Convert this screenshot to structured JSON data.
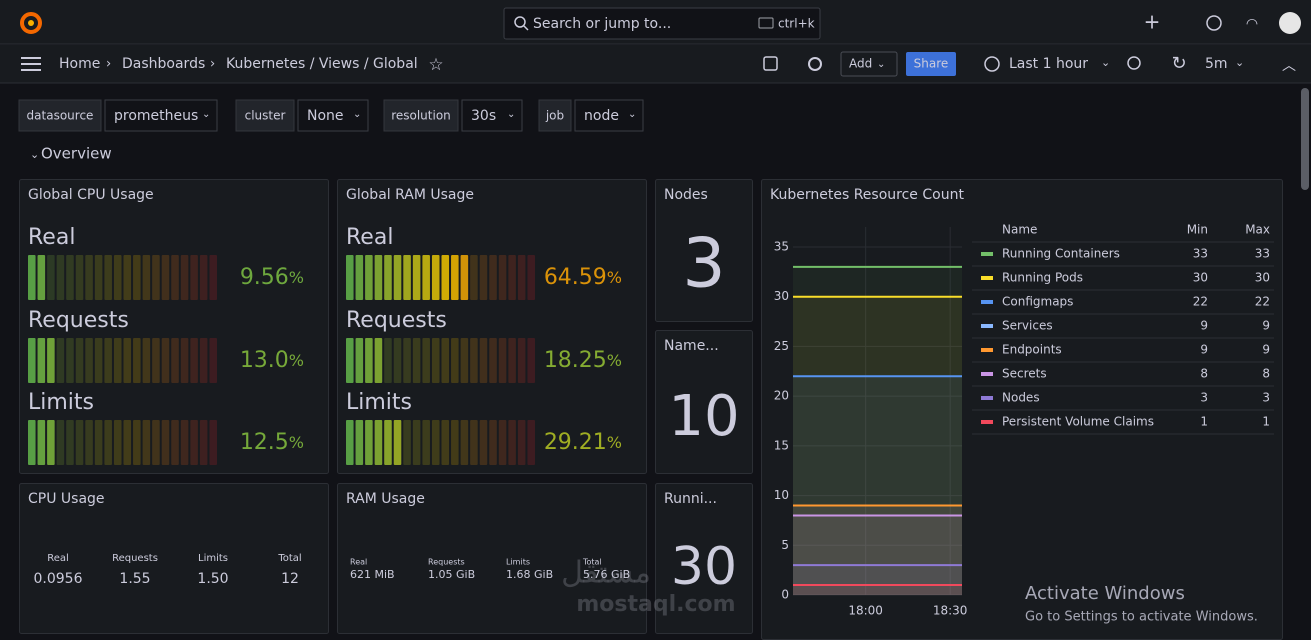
{
  "topbar": {
    "search_placeholder": "Search or jump to...",
    "shortcut": "ctrl+k"
  },
  "breadcrumbs": [
    "Home",
    "Dashboards",
    "Kubernetes / Views / Global"
  ],
  "toolbar": {
    "add": "Add",
    "share": "Share",
    "time_range": "Last 1 hour",
    "refresh": "5m"
  },
  "variables": [
    {
      "label": "datasource",
      "value": "prometheus"
    },
    {
      "label": "cluster",
      "value": "None"
    },
    {
      "label": "resolution",
      "value": "30s"
    },
    {
      "label": "job",
      "value": "node"
    }
  ],
  "row_title": "Overview",
  "panels": {
    "global_cpu": {
      "title": "Global CPU Usage",
      "min": 0,
      "max": 100,
      "gauges": [
        {
          "label": "Real",
          "value": 9.56,
          "text": "9.56",
          "unit": "%"
        },
        {
          "label": "Requests",
          "value": 13.0,
          "text": "13.0",
          "unit": "%"
        },
        {
          "label": "Limits",
          "value": 12.5,
          "text": "12.5",
          "unit": "%"
        }
      ]
    },
    "global_ram": {
      "title": "Global RAM Usage",
      "min": 0,
      "max": 100,
      "gauges": [
        {
          "label": "Real",
          "value": 64.59,
          "text": "64.59",
          "unit": "%"
        },
        {
          "label": "Requests",
          "value": 18.25,
          "text": "18.25",
          "unit": "%"
        },
        {
          "label": "Limits",
          "value": 29.21,
          "text": "29.21",
          "unit": "%"
        }
      ]
    },
    "nodes": {
      "title": "Nodes",
      "value": "3"
    },
    "namespaces": {
      "title": "Name...",
      "value": "10"
    },
    "running": {
      "title": "Runni...",
      "value": "30"
    },
    "cpu_usage": {
      "title": "CPU Usage",
      "columns": [
        "Real",
        "Requests",
        "Limits",
        "Total"
      ],
      "values": [
        "0.0956",
        "1.55",
        "1.50",
        "12"
      ]
    },
    "ram_usage": {
      "title": "RAM Usage",
      "columns": [
        "Real",
        "Requests",
        "Limits",
        "Total"
      ],
      "values": [
        "621 MiB",
        "1.05 GiB",
        "1.68 GiB",
        "5.76 GiB"
      ]
    },
    "resource_count": {
      "title": "Kubernetes Resource Count",
      "type": "line",
      "ylim": [
        0,
        35
      ],
      "yticks": [
        0,
        5,
        10,
        15,
        20,
        25,
        30,
        35
      ],
      "xticks": [
        "18:00",
        "18:30"
      ],
      "legend_columns": [
        "Name",
        "Min",
        "Max"
      ],
      "series": [
        {
          "name": "Running Containers",
          "color": "#73bf69",
          "min": 33,
          "max": 33
        },
        {
          "name": "Running Pods",
          "color": "#fade2a",
          "min": 30,
          "max": 30
        },
        {
          "name": "Configmaps",
          "color": "#5794f2",
          "min": 22,
          "max": 22
        },
        {
          "name": "Services",
          "color": "#8ab8ff",
          "min": 9,
          "max": 9
        },
        {
          "name": "Endpoints",
          "color": "#ff9830",
          "min": 9,
          "max": 9
        },
        {
          "name": "Secrets",
          "color": "#ca95e5",
          "min": 8,
          "max": 8
        },
        {
          "name": "Nodes",
          "color": "#8f7ad6",
          "min": 3,
          "max": 3
        },
        {
          "name": "Persistent Volume Claims",
          "color": "#f2495c",
          "min": 1,
          "max": 1
        }
      ]
    }
  },
  "watermarks": {
    "activate_title": "Activate Windows",
    "activate_hint": "Go to Settings to activate Windows.",
    "site_arabic": "مستقل",
    "site": "mostaql.com"
  }
}
